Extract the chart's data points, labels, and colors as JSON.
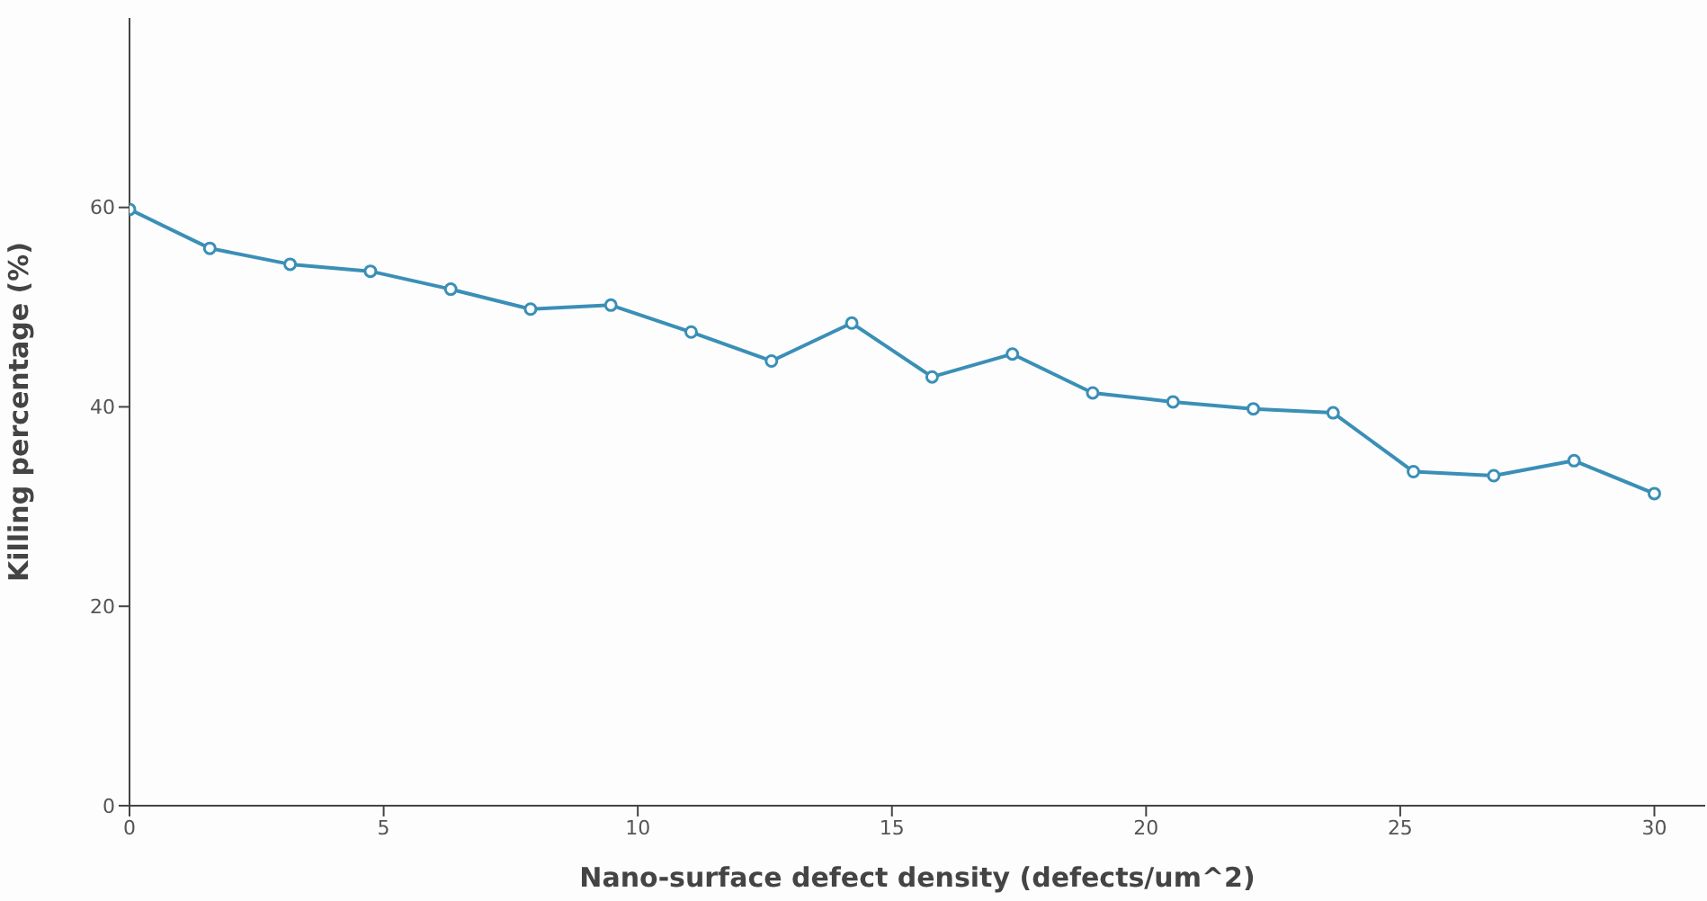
{
  "chart_data": {
    "type": "line",
    "xlabel": "Nano-surface defect density (defects/um^2)",
    "ylabel": "Killing percentage (%)",
    "x": [
      0,
      1.58,
      3.16,
      4.74,
      6.32,
      7.89,
      9.47,
      11.05,
      12.63,
      14.21,
      15.79,
      17.37,
      18.95,
      20.53,
      22.11,
      23.68,
      25.26,
      26.84,
      28.42,
      30
    ],
    "series": [
      {
        "color": "#3a8fb7",
        "values": [
          59.8,
          55.9,
          54.3,
          53.6,
          51.8,
          49.8,
          50.2,
          47.5,
          44.6,
          48.4,
          43.0,
          45.3,
          41.4,
          40.5,
          39.8,
          39.4,
          33.5,
          33.1,
          34.6,
          31.3
        ]
      }
    ],
    "xlim": [
      0,
      31
    ],
    "xticks": [
      0,
      5,
      10,
      15,
      20,
      25,
      30
    ],
    "ylim": [
      0,
      79
    ],
    "yticks": [
      0,
      20,
      40,
      60
    ],
    "marker": "circle",
    "line_style": "solid"
  }
}
